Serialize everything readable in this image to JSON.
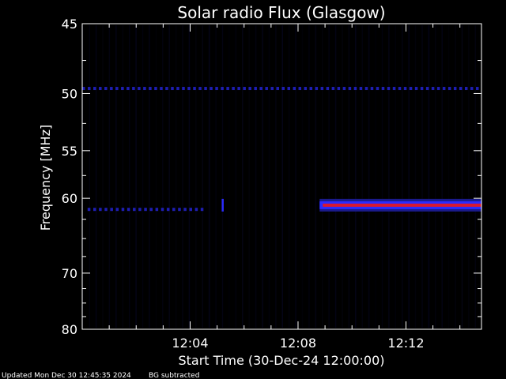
{
  "chart_data": {
    "type": "heatmap",
    "title": "Solar radio Flux (Glasgow)",
    "xlabel": "Start Time (30-Dec-24 12:00:00)",
    "ylabel": "Frequency [MHz]",
    "xlim_minutes": [
      0,
      14.8
    ],
    "ylim_mhz": [
      45,
      80
    ],
    "y_scale": "reciprocal",
    "x_ticks": [
      {
        "minute": 4,
        "label": "12:04"
      },
      {
        "minute": 8,
        "label": "12:08"
      },
      {
        "minute": 12,
        "label": "12:12"
      }
    ],
    "y_ticks": [
      {
        "mhz": 45,
        "label": "45"
      },
      {
        "mhz": 50,
        "label": "50"
      },
      {
        "mhz": 55,
        "label": "55"
      },
      {
        "mhz": 60,
        "label": "60"
      },
      {
        "mhz": 70,
        "label": "70"
      },
      {
        "mhz": 80,
        "label": "80"
      }
    ],
    "features": [
      {
        "kind": "band",
        "start_minute": 8.8,
        "end_minute": 14.8,
        "freq_mhz": 60.8,
        "intensity": "high"
      },
      {
        "kind": "band",
        "start_minute": 0.2,
        "end_minute": 4.6,
        "freq_mhz": 61.3,
        "intensity": "faint"
      },
      {
        "kind": "band",
        "start_minute": 0.0,
        "end_minute": 14.8,
        "freq_mhz": 49.6,
        "intensity": "faint"
      },
      {
        "kind": "spike",
        "minute": 5.2,
        "freq_mhz": 60.8,
        "intensity": "medium"
      }
    ],
    "colors": {
      "background": "#000000",
      "faint": "#1a1a8c",
      "medium": "#2b2bff",
      "high": "#d81830"
    }
  },
  "footer": {
    "updated": "Updated Mon Dec 30 12:45:35 2024",
    "note": "BG subtracted"
  }
}
